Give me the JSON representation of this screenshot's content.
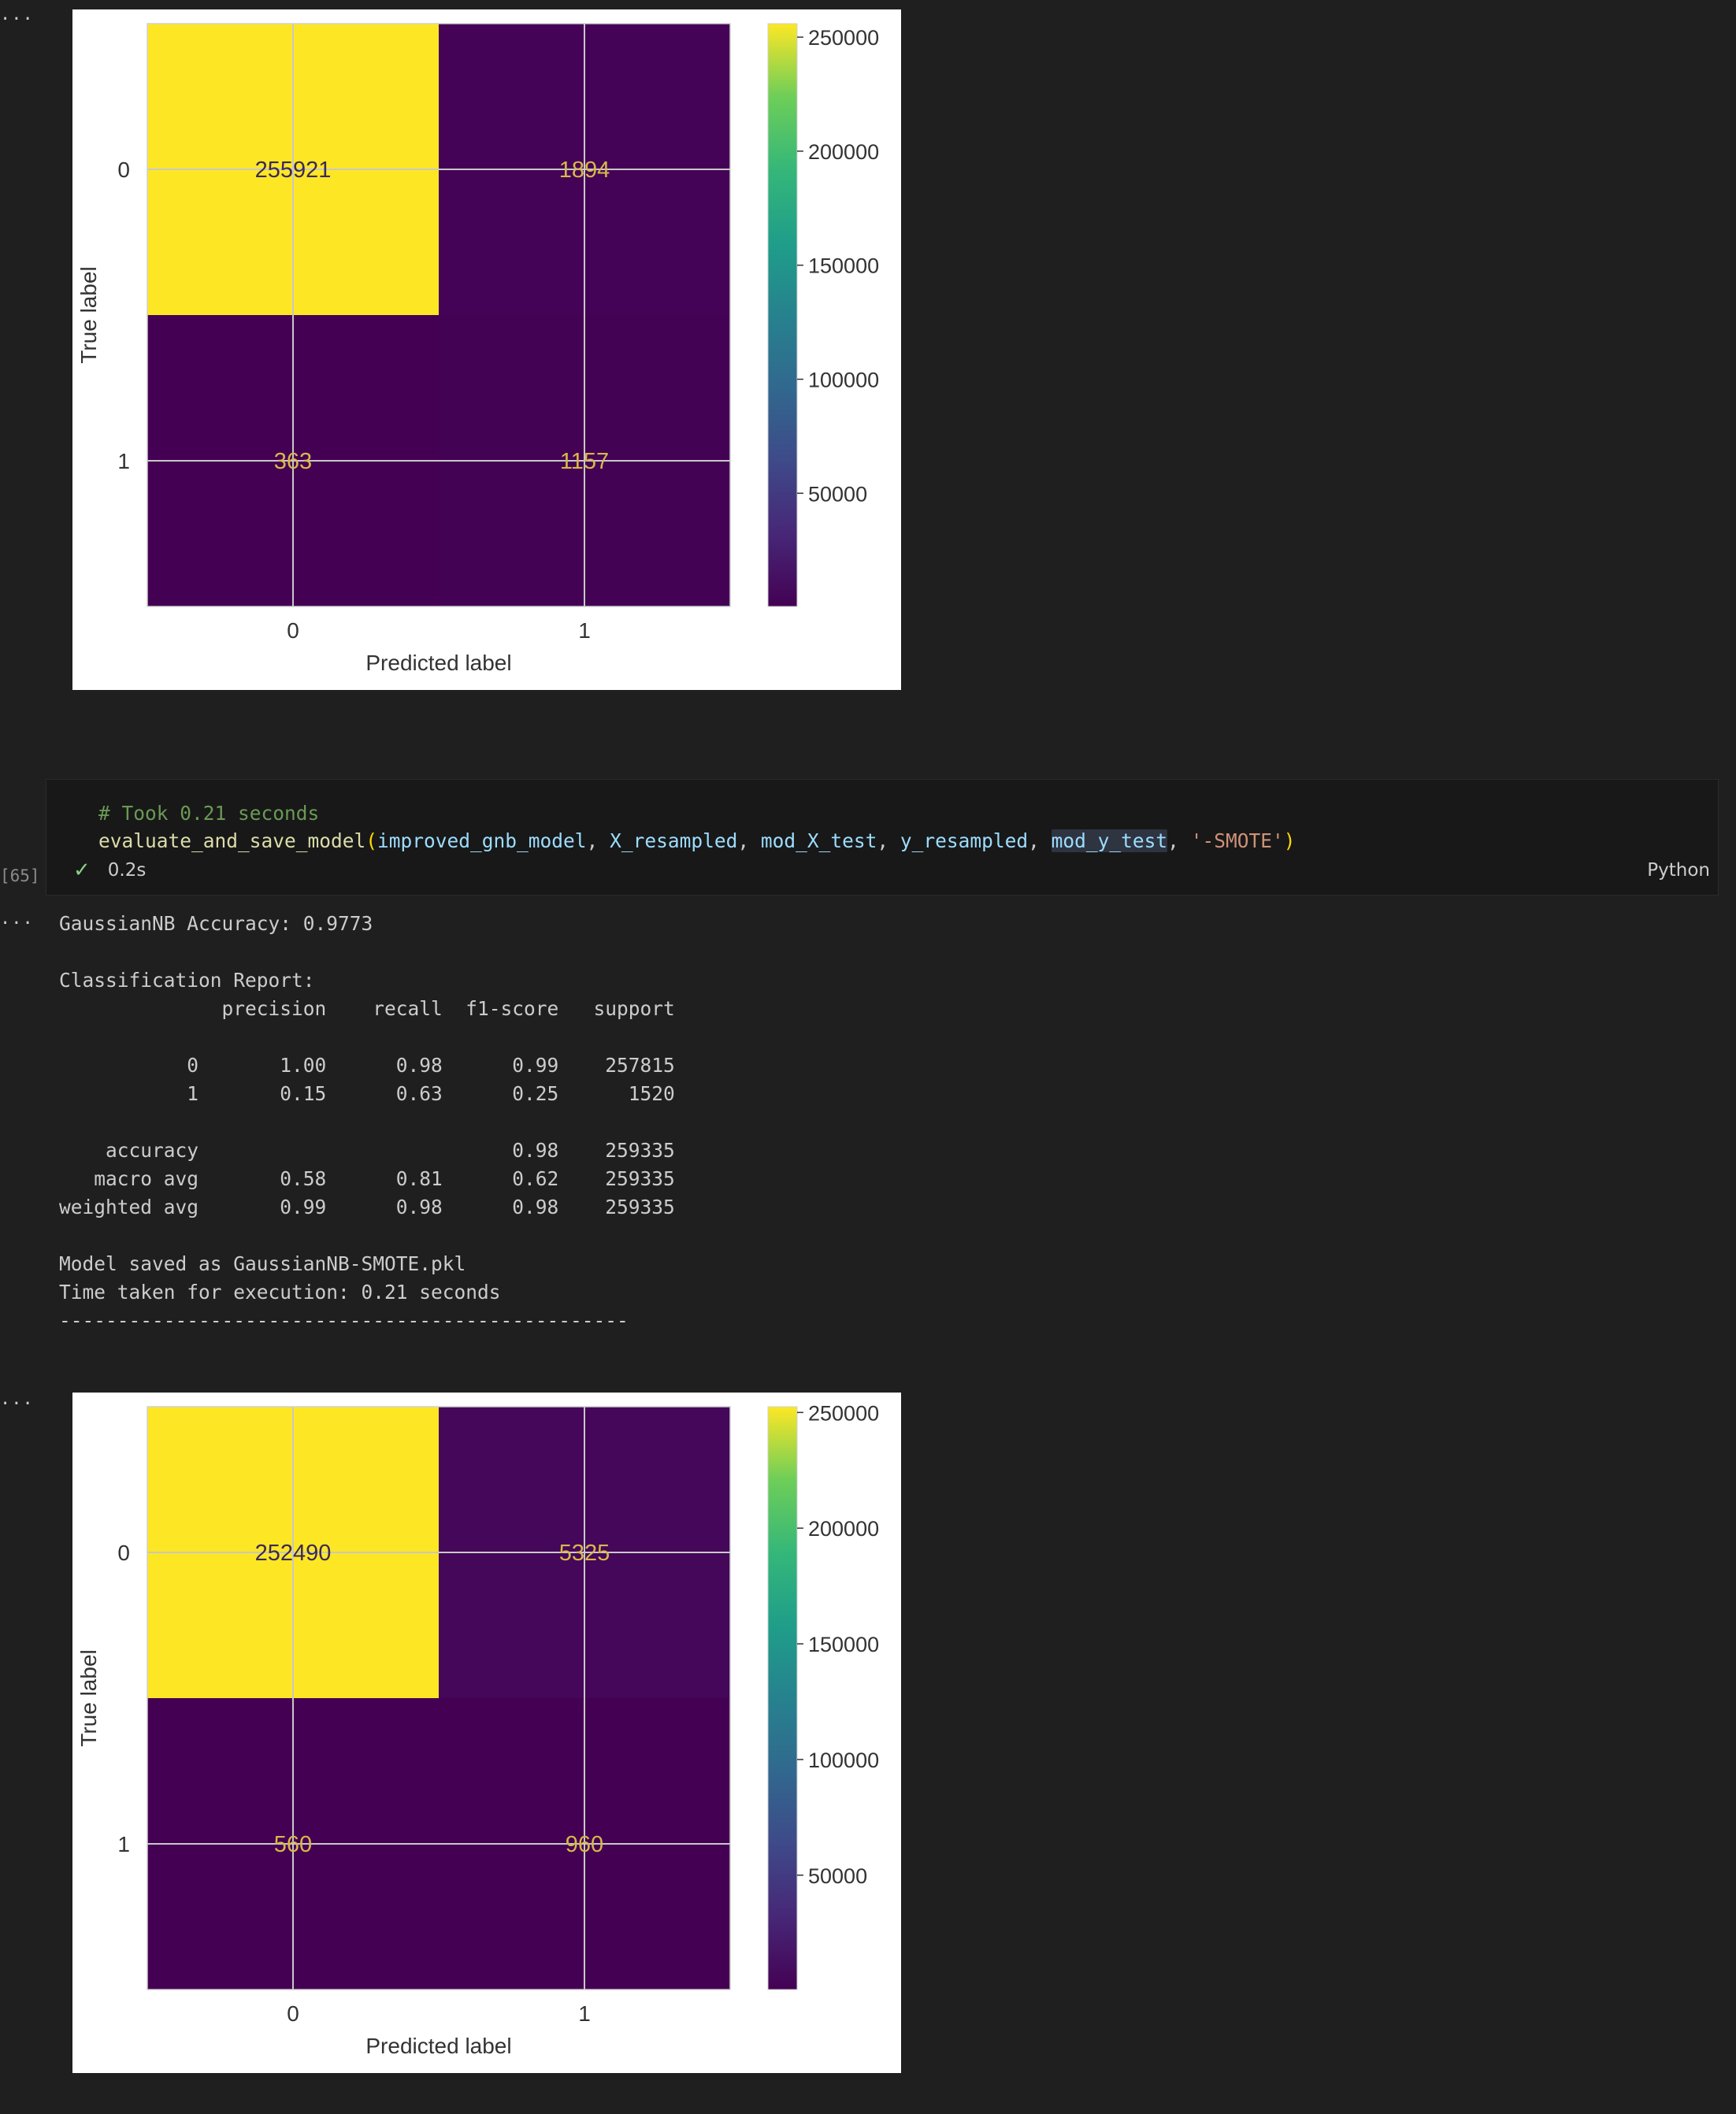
{
  "outputs_marker": "...",
  "chart_data": [
    {
      "type": "heatmap",
      "xlabel": "Predicted label",
      "ylabel": "True label",
      "x_ticks": [
        "0",
        "1"
      ],
      "y_ticks": [
        "0",
        "1"
      ],
      "matrix": [
        [
          255921,
          1894
        ],
        [
          363,
          1157
        ]
      ],
      "cell_labels": [
        [
          "255921",
          "1894"
        ],
        [
          "363",
          "1157"
        ]
      ],
      "colorbar": {
        "ticks": [
          "250000",
          "200000",
          "150000",
          "100000",
          "50000"
        ],
        "values": [
          250000,
          200000,
          150000,
          100000,
          50000
        ],
        "min": 363,
        "max": 255921,
        "colormap": "viridis"
      },
      "grid": true
    },
    {
      "type": "heatmap",
      "xlabel": "Predicted label",
      "ylabel": "True label",
      "x_ticks": [
        "0",
        "1"
      ],
      "y_ticks": [
        "0",
        "1"
      ],
      "matrix": [
        [
          252490,
          5325
        ],
        [
          560,
          960
        ]
      ],
      "cell_labels": [
        [
          "252490",
          "5325"
        ],
        [
          "560",
          "960"
        ]
      ],
      "colorbar": {
        "ticks": [
          "250000",
          "200000",
          "150000",
          "100000",
          "50000"
        ],
        "values": [
          250000,
          200000,
          150000,
          100000,
          50000
        ],
        "min": 560,
        "max": 252490,
        "colormap": "viridis"
      },
      "grid": true
    }
  ],
  "code_cell": {
    "exec_count": "[65]",
    "comment": "# Took 0.21 seconds",
    "fn": "evaluate_and_save_model",
    "open_paren": "(",
    "close_paren": ")",
    "args": [
      "improved_gnb_model",
      "X_resampled",
      "mod_X_test",
      "y_resampled",
      "mod_y_test"
    ],
    "sep": ", ",
    "string_arg": "'-SMOTE'",
    "status_icon": "check-icon",
    "duration": "0.2s",
    "language": "Python"
  },
  "output_text": "GaussianNB Accuracy: 0.9773\n\nClassification Report:\n              precision    recall  f1-score   support\n\n           0       1.00      0.98      0.99    257815\n           1       0.15      0.63      0.25      1520\n\n    accuracy                           0.98    259335\n   macro avg       0.58      0.81      0.62    259335\nweighted avg       0.99      0.98      0.98    259335\n\nModel saved as GaussianNB-SMOTE.pkl\nTime taken for execution: 0.21 seconds\n-------------------------------------------------"
}
